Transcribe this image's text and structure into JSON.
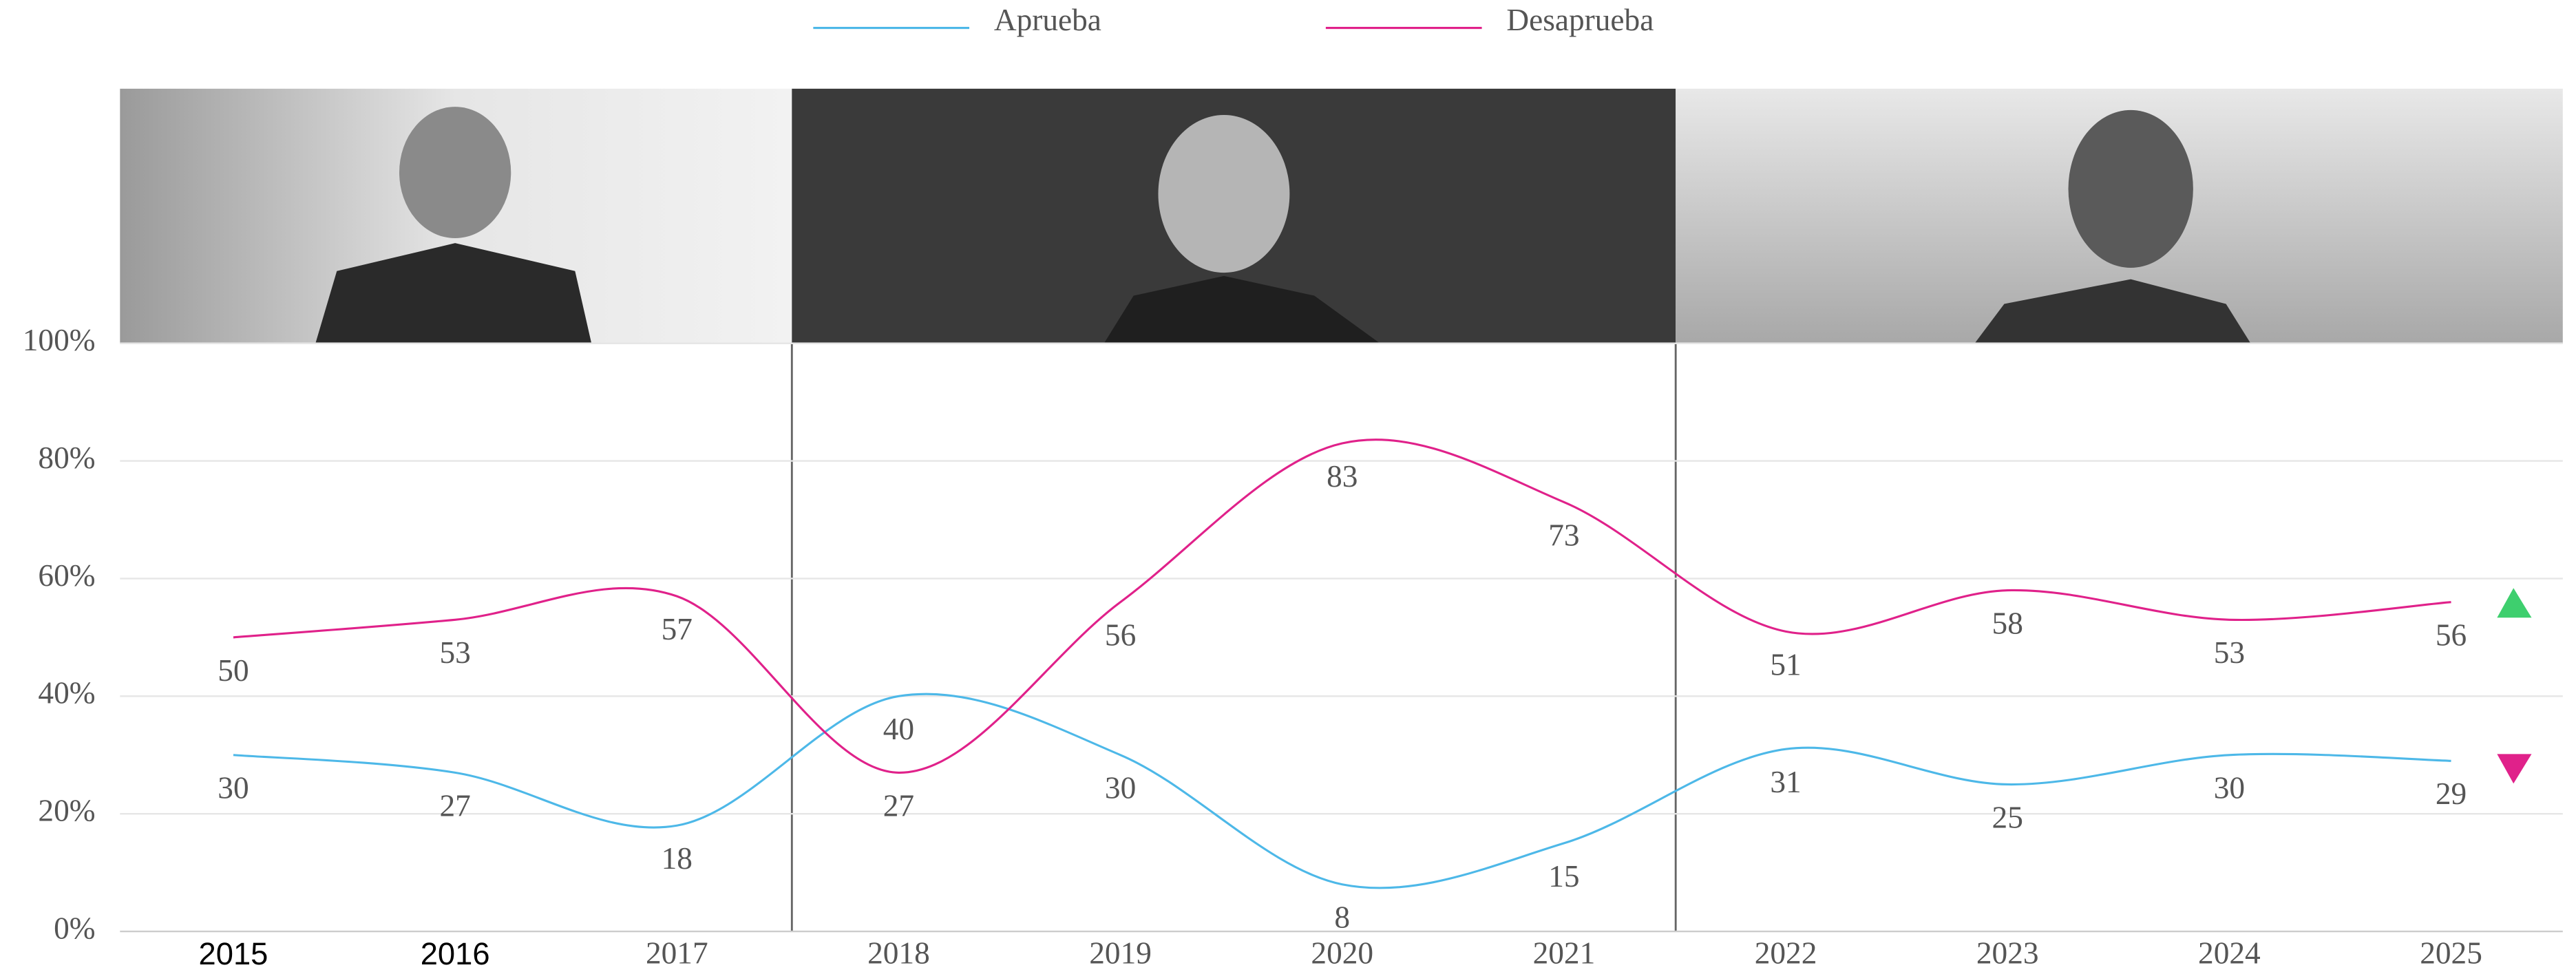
{
  "chart_data": {
    "type": "line",
    "categories": [
      "2015",
      "2016",
      "2017",
      "2018",
      "2019",
      "2020",
      "2021",
      "2022",
      "2023",
      "2024",
      "2025"
    ],
    "series": [
      {
        "name": "Aprueba",
        "color": "#4db8e8",
        "values": [
          30,
          27,
          18,
          40,
          30,
          8,
          15,
          31,
          25,
          30,
          29
        ]
      },
      {
        "name": "Desaprueba",
        "color": "#e0218a",
        "values": [
          50,
          53,
          57,
          27,
          56,
          83,
          73,
          51,
          58,
          53,
          56
        ]
      }
    ],
    "ylim": [
      0,
      100
    ],
    "yticks": [
      {
        "value": 0,
        "label": "0%"
      },
      {
        "value": 20,
        "label": "20%"
      },
      {
        "value": 40,
        "label": "40%"
      },
      {
        "value": 60,
        "label": "60%"
      },
      {
        "value": 80,
        "label": "80%"
      },
      {
        "value": 100,
        "label": "100%"
      }
    ],
    "grid": true
  }
}
